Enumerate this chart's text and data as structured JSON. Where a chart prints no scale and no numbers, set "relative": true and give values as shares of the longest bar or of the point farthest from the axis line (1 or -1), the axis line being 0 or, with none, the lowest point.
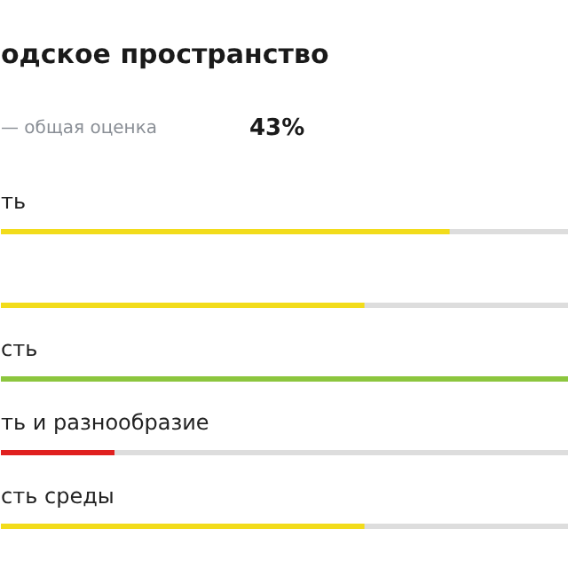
{
  "chart_data": {
    "type": "bar",
    "orientation": "horizontal",
    "relative": true,
    "title": "одское пространство",
    "annotations": [
      "— общая оценка",
      "43%"
    ],
    "categories": [
      "ть",
      null,
      "сть",
      "ть и разнообразие",
      "сть среды"
    ],
    "values": [
      0.79,
      0.64,
      1,
      0.2,
      0.64
    ],
    "colors": [
      "#f2dc1b",
      "#f2dc1b",
      "#8cc63e",
      "#e0201f",
      "#f2dc1b"
    ]
  }
}
